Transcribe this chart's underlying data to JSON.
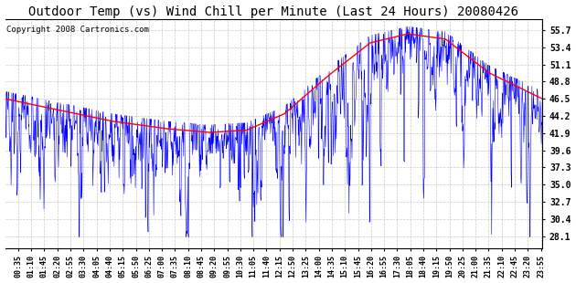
{
  "title": "Outdoor Temp (vs) Wind Chill per Minute (Last 24 Hours) 20080426",
  "copyright": "Copyright 2008 Cartronics.com",
  "ylabel_right_ticks": [
    28.1,
    30.4,
    32.7,
    35.0,
    37.3,
    39.6,
    41.9,
    44.2,
    46.5,
    48.8,
    51.1,
    53.4,
    55.7
  ],
  "ylim": [
    26.5,
    57.2
  ],
  "red_color": "#FF0000",
  "blue_color": "#0000FF",
  "bg_color": "#FFFFFF",
  "grid_color": "#BBBBBB",
  "title_fontsize": 10,
  "copyright_fontsize": 6.5,
  "smooth_keypoints_t": [
    0,
    0.1,
    0.2,
    0.3,
    0.38,
    0.45,
    0.52,
    0.6,
    0.68,
    0.75,
    0.82,
    0.9,
    1.0
  ],
  "smooth_keypoints_v": [
    46.5,
    45.0,
    43.5,
    42.5,
    42.0,
    42.3,
    44.5,
    49.5,
    54.0,
    55.2,
    54.5,
    50.0,
    46.5
  ]
}
